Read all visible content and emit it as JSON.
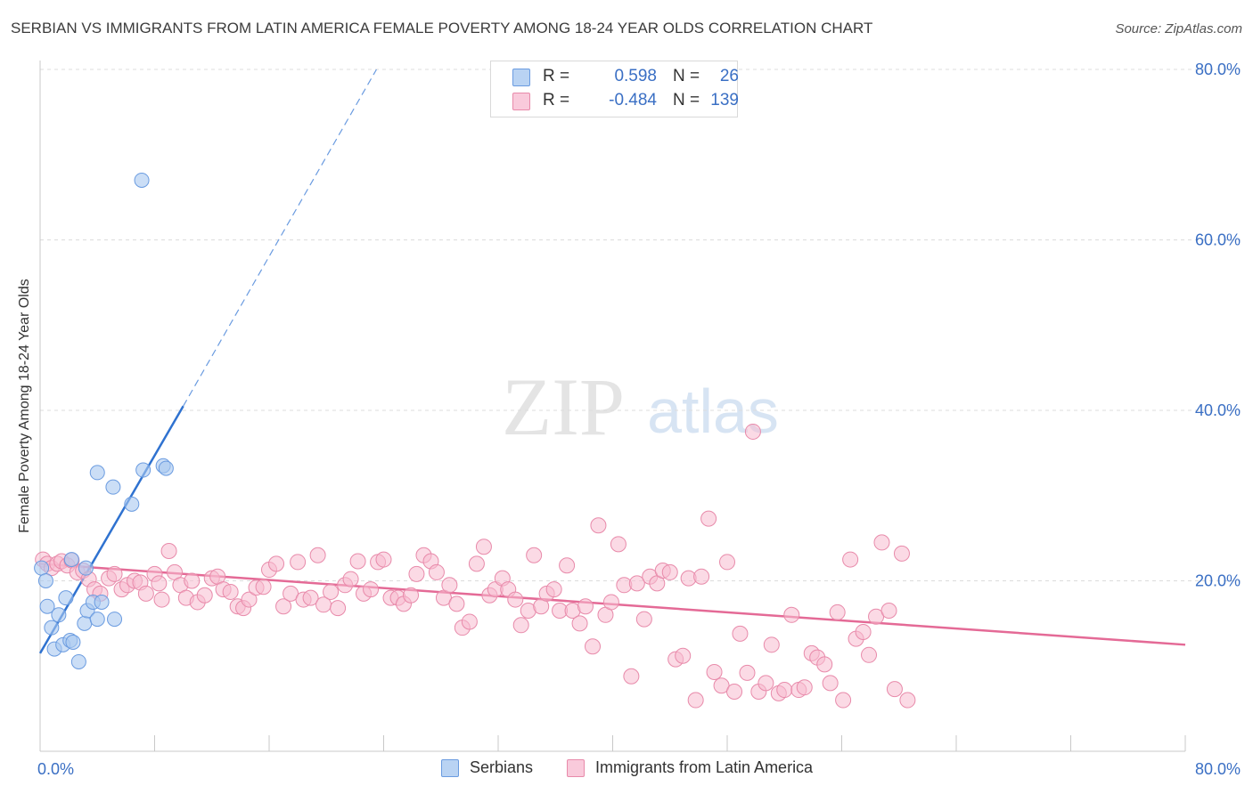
{
  "title": "SERBIAN VS IMMIGRANTS FROM LATIN AMERICA FEMALE POVERTY AMONG 18-24 YEAR OLDS CORRELATION CHART",
  "source": "Source: ZipAtlas.com",
  "watermark": {
    "zip": "ZIP",
    "atlas": "atlas"
  },
  "legend": {
    "rows": [
      {
        "r_label": "R =",
        "r_value": "0.598",
        "n_label": "N =",
        "n_value": "26",
        "color": "#a9c8f0",
        "border": "#6a9be0"
      },
      {
        "r_label": "R =",
        "r_value": "-0.484",
        "n_label": "N =",
        "n_value": "139",
        "color": "#f7bcd0",
        "border": "#e88aaa"
      }
    ]
  },
  "bottom_legend": {
    "serbians": "Serbians",
    "latin": "Immigrants from Latin America"
  },
  "chart_data": {
    "type": "scatter",
    "title": "SERBIAN VS IMMIGRANTS FROM LATIN AMERICA FEMALE POVERTY AMONG 18-24 YEAR OLDS CORRELATION CHART",
    "xlabel": "",
    "ylabel": "Female Poverty Among 18-24 Year Olds",
    "xlim": [
      0,
      80
    ],
    "ylim": [
      0,
      80
    ],
    "x_tick_labels": [
      "0.0%",
      "80.0%"
    ],
    "y_tick_labels": [
      "20.0%",
      "40.0%",
      "60.0%",
      "80.0%"
    ],
    "y_ticks": [
      20,
      40,
      60,
      80
    ],
    "grid": "horizontal dashed",
    "series": [
      {
        "name": "Serbians",
        "color": "#6a9be0",
        "fill": "#a9c8f0",
        "points": [
          [
            0.1,
            21.5
          ],
          [
            0.4,
            20.0
          ],
          [
            0.5,
            17.0
          ],
          [
            0.8,
            14.5
          ],
          [
            1.0,
            12.0
          ],
          [
            1.3,
            16.0
          ],
          [
            1.6,
            12.5
          ],
          [
            1.8,
            18.0
          ],
          [
            2.1,
            13.0
          ],
          [
            2.3,
            12.8
          ],
          [
            2.7,
            10.5
          ],
          [
            3.1,
            15.0
          ],
          [
            3.3,
            16.5
          ],
          [
            3.7,
            17.5
          ],
          [
            4.0,
            15.5
          ],
          [
            4.3,
            17.5
          ],
          [
            5.2,
            15.5
          ],
          [
            4.0,
            32.7
          ],
          [
            5.1,
            31.0
          ],
          [
            6.4,
            29.0
          ],
          [
            7.1,
            67.0
          ],
          [
            7.2,
            33.0
          ],
          [
            8.6,
            33.5
          ],
          [
            8.8,
            33.2
          ],
          [
            3.2,
            21.5
          ],
          [
            2.2,
            22.5
          ]
        ],
        "trend": {
          "x": [
            0,
            10
          ],
          "y": [
            11.5,
            40.5
          ],
          "dashed_extension": {
            "x": [
              10,
              23.5
            ],
            "y": [
              40.5,
              80
            ]
          }
        }
      },
      {
        "name": "Immigrants from Latin America",
        "color": "#e88aaa",
        "fill": "#f7bcd0",
        "points": [
          [
            0.2,
            22.5
          ],
          [
            0.5,
            22.0
          ],
          [
            0.8,
            21.5
          ],
          [
            1.2,
            22.0
          ],
          [
            1.5,
            22.3
          ],
          [
            1.9,
            21.8
          ],
          [
            2.2,
            22.4
          ],
          [
            2.6,
            21.0
          ],
          [
            3.0,
            21.2
          ],
          [
            3.4,
            20.2
          ],
          [
            3.8,
            19.0
          ],
          [
            4.2,
            18.5
          ],
          [
            4.8,
            20.3
          ],
          [
            5.2,
            20.8
          ],
          [
            5.7,
            19.0
          ],
          [
            6.1,
            19.5
          ],
          [
            6.6,
            20.0
          ],
          [
            7.0,
            19.8
          ],
          [
            7.4,
            18.5
          ],
          [
            8.0,
            20.8
          ],
          [
            8.5,
            17.8
          ],
          [
            9.0,
            23.5
          ],
          [
            9.4,
            21.0
          ],
          [
            9.8,
            19.5
          ],
          [
            10.2,
            18.0
          ],
          [
            10.6,
            20.0
          ],
          [
            11.0,
            17.5
          ],
          [
            11.5,
            18.3
          ],
          [
            12.0,
            20.3
          ],
          [
            12.4,
            20.5
          ],
          [
            12.8,
            19.0
          ],
          [
            13.3,
            18.7
          ],
          [
            13.8,
            17.0
          ],
          [
            14.2,
            16.8
          ],
          [
            14.6,
            17.8
          ],
          [
            15.1,
            19.2
          ],
          [
            15.6,
            19.3
          ],
          [
            16.0,
            21.3
          ],
          [
            16.5,
            22.0
          ],
          [
            17.0,
            17.0
          ],
          [
            17.5,
            18.5
          ],
          [
            18.0,
            22.2
          ],
          [
            18.4,
            17.8
          ],
          [
            18.9,
            18.0
          ],
          [
            19.4,
            23.0
          ],
          [
            19.8,
            17.2
          ],
          [
            20.3,
            18.7
          ],
          [
            20.8,
            16.8
          ],
          [
            21.3,
            19.5
          ],
          [
            21.7,
            20.2
          ],
          [
            22.2,
            22.3
          ],
          [
            22.6,
            18.5
          ],
          [
            23.1,
            19.0
          ],
          [
            23.6,
            22.2
          ],
          [
            24.0,
            22.5
          ],
          [
            24.5,
            18.0
          ],
          [
            25.0,
            18.0
          ],
          [
            25.4,
            17.3
          ],
          [
            25.9,
            18.3
          ],
          [
            26.3,
            20.8
          ],
          [
            26.8,
            23.0
          ],
          [
            27.3,
            22.3
          ],
          [
            27.7,
            21.0
          ],
          [
            28.2,
            18.0
          ],
          [
            28.6,
            19.5
          ],
          [
            29.1,
            17.3
          ],
          [
            29.5,
            14.5
          ],
          [
            30.0,
            15.2
          ],
          [
            30.5,
            22.0
          ],
          [
            31.0,
            24.0
          ],
          [
            31.4,
            18.3
          ],
          [
            31.8,
            19.0
          ],
          [
            32.3,
            20.3
          ],
          [
            32.7,
            19.0
          ],
          [
            33.2,
            17.8
          ],
          [
            33.6,
            14.8
          ],
          [
            34.1,
            16.5
          ],
          [
            34.5,
            23.0
          ],
          [
            35.0,
            17.0
          ],
          [
            35.4,
            18.5
          ],
          [
            35.9,
            19.0
          ],
          [
            36.3,
            16.5
          ],
          [
            36.8,
            21.8
          ],
          [
            37.2,
            16.5
          ],
          [
            37.7,
            15.0
          ],
          [
            38.1,
            17.0
          ],
          [
            38.6,
            12.3
          ],
          [
            39.0,
            26.5
          ],
          [
            39.5,
            16.0
          ],
          [
            39.9,
            17.5
          ],
          [
            40.4,
            24.3
          ],
          [
            40.8,
            19.5
          ],
          [
            41.3,
            8.8
          ],
          [
            41.7,
            19.7
          ],
          [
            42.2,
            15.5
          ],
          [
            42.6,
            20.5
          ],
          [
            43.1,
            19.7
          ],
          [
            43.5,
            21.2
          ],
          [
            44.0,
            21.0
          ],
          [
            44.4,
            10.8
          ],
          [
            44.9,
            11.2
          ],
          [
            45.3,
            20.3
          ],
          [
            45.8,
            6.0
          ],
          [
            46.2,
            20.5
          ],
          [
            46.7,
            27.3
          ],
          [
            47.1,
            9.3
          ],
          [
            47.6,
            7.7
          ],
          [
            48.0,
            22.2
          ],
          [
            48.5,
            7.0
          ],
          [
            48.9,
            13.8
          ],
          [
            49.4,
            9.2
          ],
          [
            49.8,
            37.5
          ],
          [
            50.2,
            7.0
          ],
          [
            50.7,
            8.0
          ],
          [
            51.1,
            12.5
          ],
          [
            51.6,
            6.8
          ],
          [
            52.0,
            7.2
          ],
          [
            52.5,
            16.0
          ],
          [
            53.0,
            7.2
          ],
          [
            53.4,
            7.5
          ],
          [
            53.9,
            11.5
          ],
          [
            54.3,
            11.0
          ],
          [
            54.8,
            10.2
          ],
          [
            55.2,
            8.0
          ],
          [
            55.7,
            16.3
          ],
          [
            56.1,
            6.0
          ],
          [
            56.6,
            22.5
          ],
          [
            57.0,
            13.2
          ],
          [
            57.5,
            14.0
          ],
          [
            57.9,
            11.3
          ],
          [
            58.4,
            15.8
          ],
          [
            58.8,
            24.5
          ],
          [
            59.3,
            16.5
          ],
          [
            59.7,
            7.3
          ],
          [
            60.2,
            23.2
          ],
          [
            60.6,
            6.0
          ],
          [
            8.3,
            19.7
          ]
        ],
        "trend": {
          "x": [
            0,
            80
          ],
          "y": [
            22.0,
            12.5
          ]
        }
      }
    ]
  }
}
